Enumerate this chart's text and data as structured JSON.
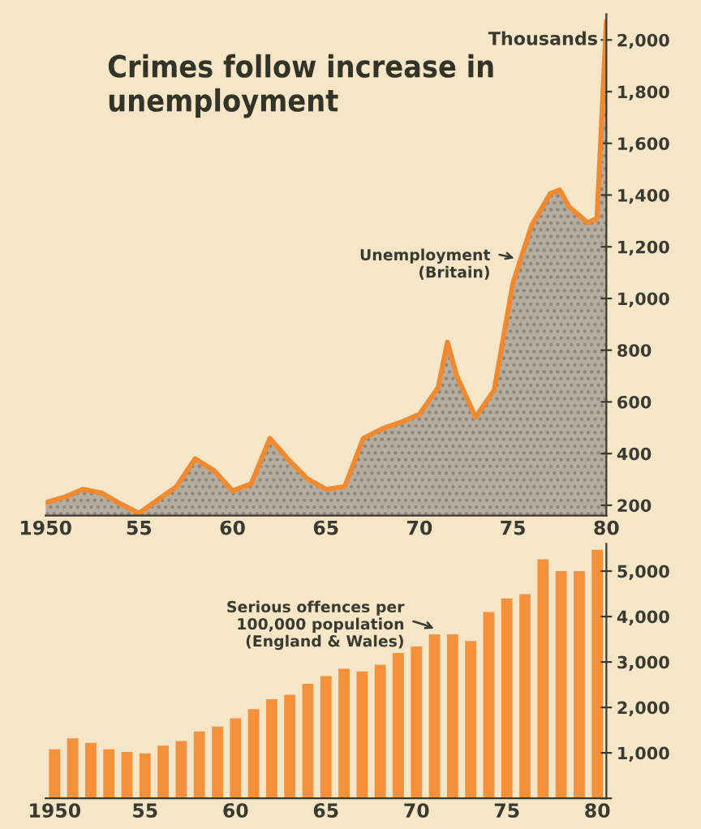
{
  "chart_data": [
    {
      "type": "area",
      "title": "Crimes follow increase in unemployment",
      "ylabel": "Thousands",
      "x": [
        1950,
        1951,
        1952,
        1953,
        1954,
        1955,
        1956,
        1957,
        1958,
        1959,
        1960,
        1961,
        1962,
        1963,
        1964,
        1965,
        1966,
        1967,
        1968,
        1969,
        1970,
        1971,
        1971.5,
        1972,
        1973,
        1974,
        1975,
        1976,
        1977,
        1977.5,
        1978,
        1979,
        1979.5,
        1980
      ],
      "series": [
        {
          "color": "#f08a30",
          "values": [
            210,
            231,
            262,
            248,
            206,
            169,
            221,
            272,
            380,
            335,
            256,
            283,
            459,
            376,
            303,
            262,
            272,
            459,
            496,
            521,
            552,
            655,
            831,
            700,
            541,
            645,
            1059,
            1282,
            1406,
            1420,
            1355,
            1293,
            1310,
            2070
          ]
        }
      ],
      "xlim": [
        1950,
        1980
      ],
      "ylim": [
        160,
        2100
      ],
      "xticks": [
        1950,
        {
          "value": 1955,
          "label": "55"
        },
        {
          "value": 1960,
          "label": "60"
        },
        {
          "value": 1965,
          "label": "65"
        },
        {
          "value": 1970,
          "label": "70"
        },
        {
          "value": 1975,
          "label": "75"
        },
        {
          "value": 1980,
          "label": "80"
        }
      ],
      "yticks": [
        {
          "value": 200,
          "label": "200"
        },
        {
          "value": 400,
          "label": "400"
        },
        {
          "value": 600,
          "label": "600"
        },
        {
          "value": 800,
          "label": "800"
        },
        {
          "value": 1000,
          "label": "1,000"
        },
        {
          "value": 1200,
          "label": "1,200"
        },
        {
          "value": 1400,
          "label": "1,400"
        },
        {
          "value": 1600,
          "label": "1,600"
        },
        {
          "value": 1800,
          "label": "1,800"
        },
        {
          "value": 2000,
          "label": "2,000"
        }
      ],
      "annotations": [
        {
          "text": "Unemployment\n(Britain)",
          "x": 1975.3,
          "y": 1150
        }
      ],
      "grid": false
    },
    {
      "type": "bar",
      "categories": [
        "1950",
        null,
        null,
        null,
        null,
        "55",
        null,
        null,
        null,
        null,
        "60",
        null,
        null,
        null,
        null,
        "65",
        null,
        null,
        null,
        null,
        "70",
        null,
        null,
        null,
        null,
        "75",
        null,
        null,
        null,
        null,
        "80"
      ],
      "series": [
        {
          "color": "#f5913a",
          "values": [
            1080,
            1320,
            1220,
            1080,
            1020,
            990,
            1160,
            1260,
            1470,
            1580,
            1760,
            1960,
            2180,
            2280,
            2520,
            2690,
            2850,
            2790,
            2940,
            3200,
            3340,
            3610,
            3610,
            3460,
            4100,
            4400,
            4490,
            5260,
            5000,
            5000,
            5470
          ]
        }
      ],
      "ylim": [
        0,
        5600
      ],
      "yticks": [
        {
          "value": 0,
          "label": null
        },
        {
          "value": 1000,
          "label": "1,000"
        },
        {
          "value": 2000,
          "label": "2,000"
        },
        {
          "value": 3000,
          "label": "3,000"
        },
        {
          "value": 4000,
          "label": "4,000"
        },
        {
          "value": 5000,
          "label": "5,000"
        }
      ],
      "annotations": [
        "Serious offences per\n100,000 population\n(England & Wales)"
      ],
      "grid": false
    }
  ]
}
